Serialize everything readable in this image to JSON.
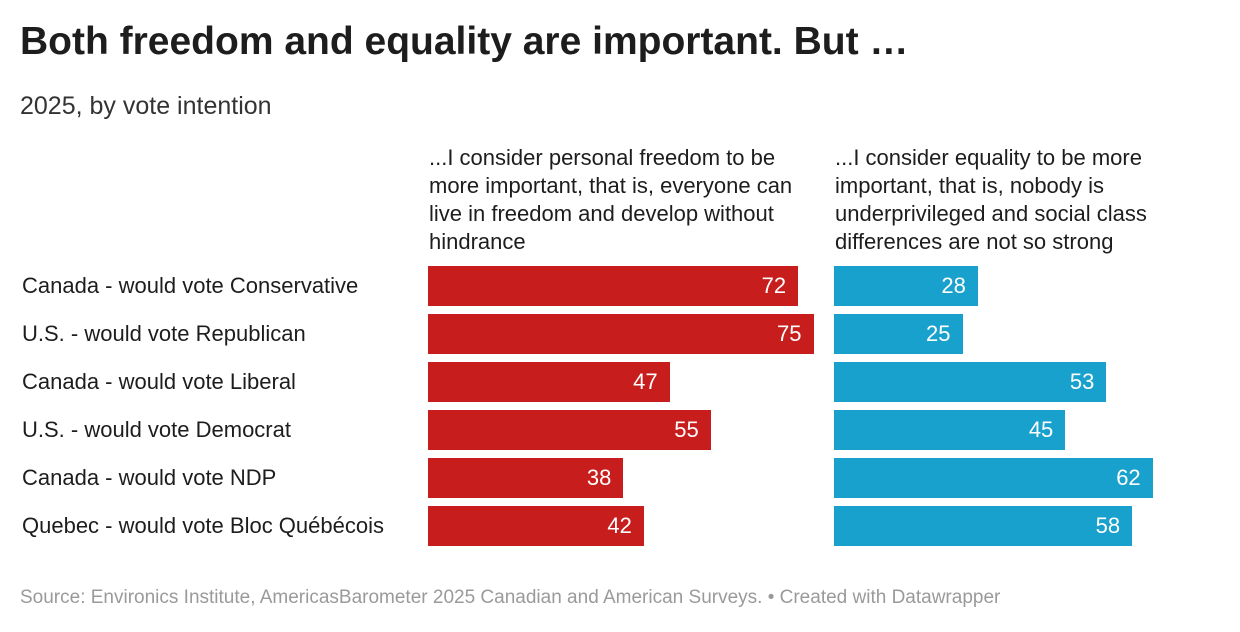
{
  "chart_data": {
    "type": "split-bar",
    "title": "Both freedom and equality are important. But …",
    "subtitle": "2025, by vote intention",
    "categories": [
      "Canada - would vote Conservative",
      "U.S. - would vote Republican",
      "Canada - would vote Liberal",
      "U.S. - would vote Democrat",
      "Canada - would vote NDP",
      "Quebec - would vote Bloc Québécois"
    ],
    "series": [
      {
        "name": "...I consider personal freedom to be more important, that is, everyone can live in freedom and develop without hindrance",
        "color": "#c71e1d",
        "values": [
          72,
          75,
          47,
          55,
          38,
          42
        ]
      },
      {
        "name": "...I consider equality to be more important, that is, nobody is underprivileged and social class differences are not so strong",
        "color": "#18a1cd",
        "values": [
          28,
          25,
          53,
          45,
          62,
          58
        ]
      }
    ],
    "source": "Source: Environics Institute, AmericasBarometer 2025 Canadian and American Surveys. • Created with Datawrapper"
  }
}
